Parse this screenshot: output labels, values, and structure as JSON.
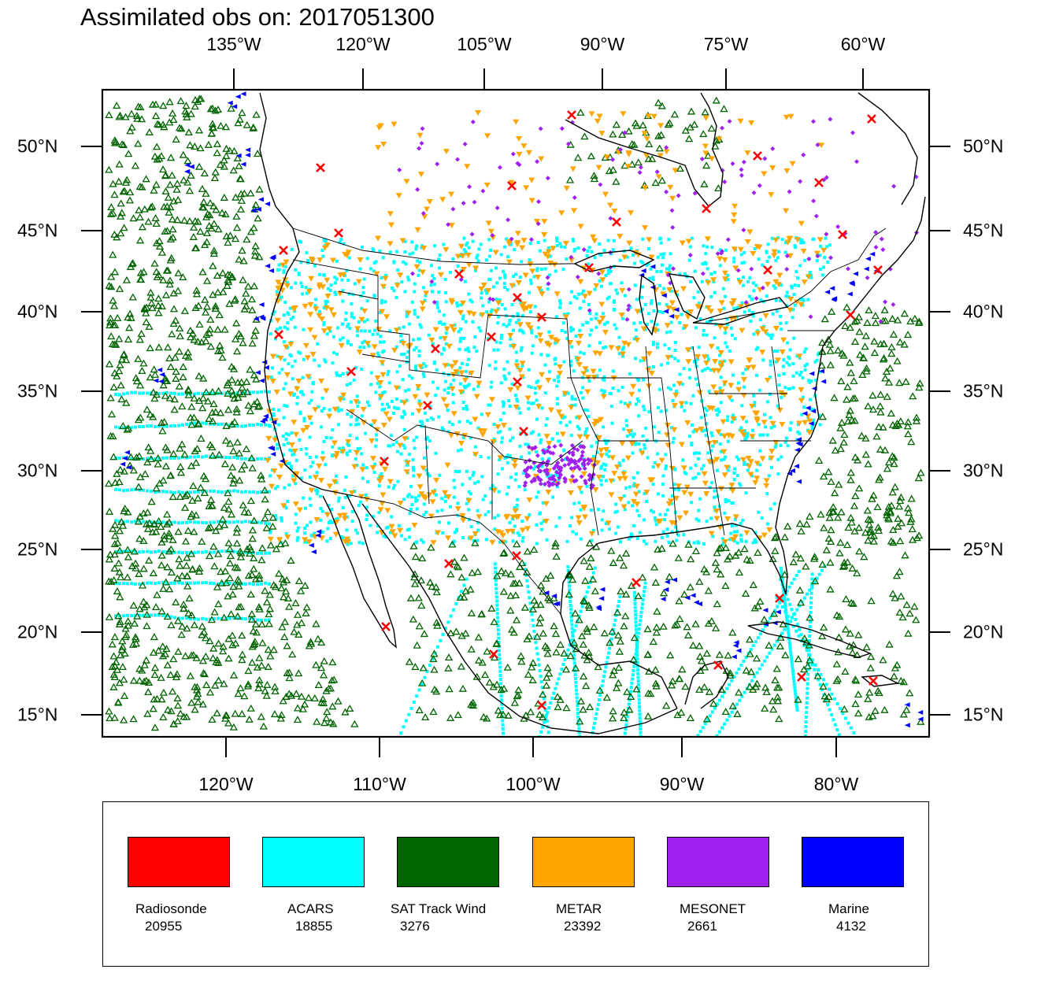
{
  "title": "Assimilated obs on: 2017051300",
  "top_lon_labels": [
    "135°W",
    "120°W",
    "105°W",
    "90°W",
    "75°W",
    "60°W"
  ],
  "bottom_lon_labels": [
    "120°W",
    "110°W",
    "100°W",
    "90°W",
    "80°W"
  ],
  "lat_labels": [
    "50°N",
    "45°N",
    "40°N",
    "35°N",
    "30°N",
    "25°N",
    "20°N",
    "15°N"
  ],
  "legend": [
    {
      "name": "Radiosonde",
      "count": "20955",
      "color": "#ff0000"
    },
    {
      "name": "ACARS",
      "count": "18855",
      "color": "#00ffff"
    },
    {
      "name": "SAT Track Wind",
      "count": "3276",
      "color": "#006400"
    },
    {
      "name": "METAR",
      "count": "23392",
      "color": "#ffa500"
    },
    {
      "name": "MESONET",
      "count": "2661",
      "color": "#a020f0"
    },
    {
      "name": "Marine",
      "count": "4132",
      "color": "#0000ff"
    }
  ],
  "map": {
    "projection": "Lambert conformal, CONUS domain",
    "lat_range": [
      14,
      53
    ],
    "lon_range": [
      -128,
      -60
    ],
    "border_color": "#000000"
  }
}
